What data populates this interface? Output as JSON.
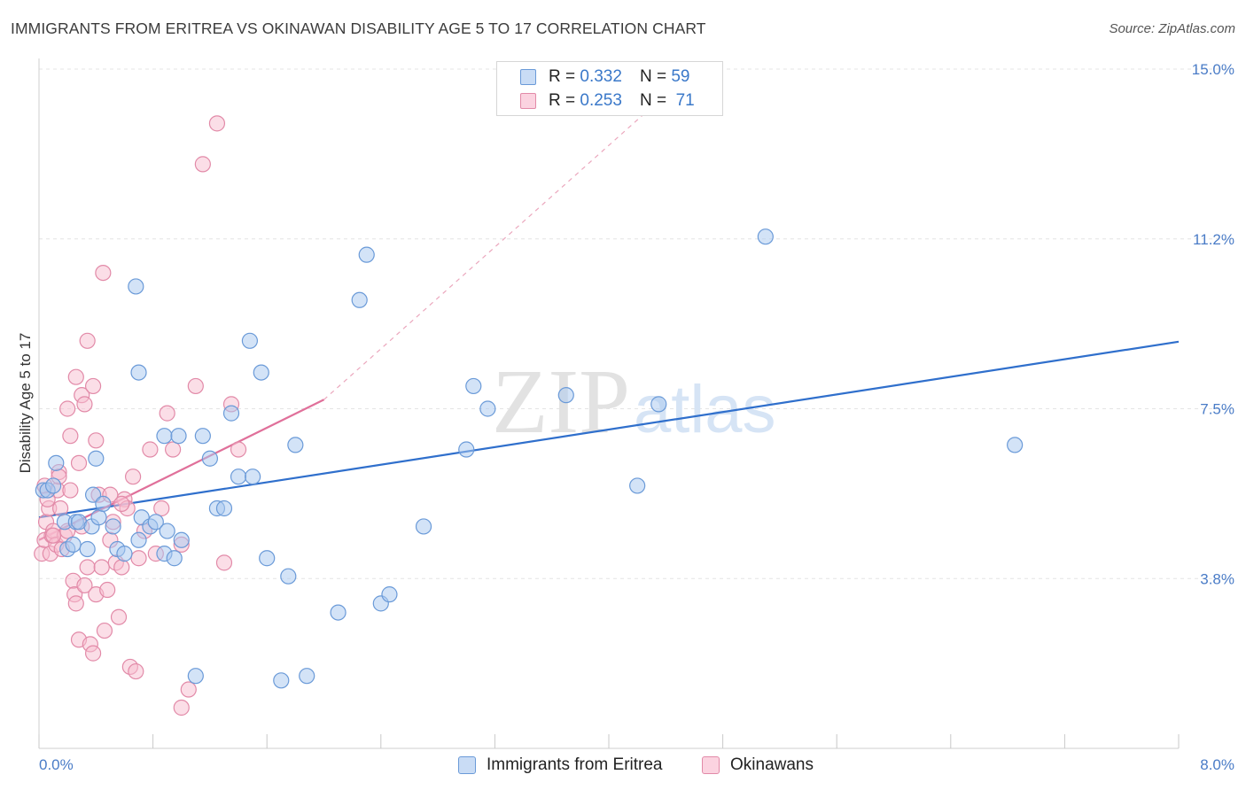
{
  "title": "IMMIGRANTS FROM ERITREA VS OKINAWAN DISABILITY AGE 5 TO 17 CORRELATION CHART",
  "source": "Source: ZipAtlas.com",
  "watermark": {
    "zip": "ZIP",
    "atlas": "atlas"
  },
  "legend": {
    "r_label": "R =",
    "n_label": "N =",
    "rows": [
      {
        "r": "0.332",
        "n": "59",
        "color": "#a8c8f0",
        "stroke": "#6a9ad8"
      },
      {
        "r": "0.253",
        "n": "71",
        "color": "#f7bdd0",
        "stroke": "#e28aa8"
      }
    ]
  },
  "bottom_legend": [
    "Immigrants from Eritrea",
    "Okinawans"
  ],
  "chart_data": {
    "type": "scatter",
    "xlabel": "",
    "ylabel": "Disability Age 5 to 17",
    "xlim": [
      0,
      8
    ],
    "ylim": [
      0,
      15
    ],
    "x_tick_labels": [
      "0.0%",
      "8.0%"
    ],
    "y_ticks": [
      3.75,
      7.5,
      11.25,
      15
    ],
    "y_tick_labels": [
      "3.8%",
      "7.5%",
      "11.2%",
      "15.0%"
    ],
    "grid": true,
    "legend_position": "top-center",
    "colors": {
      "blue_fill": "#a8c8f0",
      "blue_stroke": "#6a9ad8",
      "blue_line": "#2f6fcc",
      "pink_fill": "#f7bdd0",
      "pink_stroke": "#e28aa8",
      "pink_line": "#e0709a"
    },
    "series": [
      {
        "name": "Immigrants from Eritrea",
        "trend": {
          "x": [
            0.0,
            8.0
          ],
          "y": [
            5.1,
            8.98
          ]
        },
        "points": [
          [
            0.03,
            5.7
          ],
          [
            0.06,
            5.7
          ],
          [
            0.1,
            5.8
          ],
          [
            0.12,
            6.3
          ],
          [
            0.18,
            5.0
          ],
          [
            0.2,
            4.4
          ],
          [
            0.24,
            4.5
          ],
          [
            0.26,
            5.0
          ],
          [
            0.28,
            5.0
          ],
          [
            0.34,
            4.4
          ],
          [
            0.37,
            4.9
          ],
          [
            0.38,
            5.6
          ],
          [
            0.4,
            6.4
          ],
          [
            0.42,
            5.1
          ],
          [
            0.45,
            5.4
          ],
          [
            0.52,
            4.9
          ],
          [
            0.55,
            4.4
          ],
          [
            0.6,
            4.3
          ],
          [
            0.7,
            4.6
          ],
          [
            0.72,
            5.1
          ],
          [
            0.78,
            4.9
          ],
          [
            0.82,
            5.0
          ],
          [
            0.88,
            4.3
          ],
          [
            0.9,
            4.8
          ],
          [
            0.95,
            4.2
          ],
          [
            1.0,
            4.6
          ],
          [
            0.88,
            6.9
          ],
          [
            0.98,
            6.9
          ],
          [
            1.15,
            6.9
          ],
          [
            1.2,
            6.4
          ],
          [
            1.25,
            5.3
          ],
          [
            1.3,
            5.3
          ],
          [
            1.4,
            6.0
          ],
          [
            1.5,
            6.0
          ],
          [
            1.56,
            8.3
          ],
          [
            1.48,
            9.0
          ],
          [
            0.7,
            8.3
          ],
          [
            0.68,
            10.2
          ],
          [
            1.35,
            7.4
          ],
          [
            1.6,
            4.2
          ],
          [
            1.75,
            3.8
          ],
          [
            1.8,
            6.7
          ],
          [
            2.1,
            3.0
          ],
          [
            2.25,
            9.9
          ],
          [
            2.4,
            3.2
          ],
          [
            2.46,
            3.4
          ],
          [
            2.7,
            4.9
          ],
          [
            3.0,
            6.6
          ],
          [
            3.05,
            8.0
          ],
          [
            3.15,
            7.5
          ],
          [
            3.7,
            7.8
          ],
          [
            4.2,
            5.8
          ],
          [
            4.35,
            7.6
          ],
          [
            5.1,
            11.3
          ],
          [
            6.85,
            6.7
          ],
          [
            2.3,
            10.9
          ],
          [
            1.1,
            1.6
          ],
          [
            1.7,
            1.5
          ],
          [
            1.88,
            1.6
          ]
        ]
      },
      {
        "name": "Okinawans",
        "trend": {
          "x": [
            0.0,
            2.0
          ],
          "y": [
            4.6,
            7.7
          ]
        },
        "trend_dashed": {
          "x": [
            2.0,
            4.6
          ],
          "y": [
            7.7,
            15.0
          ]
        },
        "points": [
          [
            0.02,
            4.3
          ],
          [
            0.04,
            4.6
          ],
          [
            0.05,
            5.0
          ],
          [
            0.07,
            5.3
          ],
          [
            0.08,
            4.3
          ],
          [
            0.09,
            4.7
          ],
          [
            0.1,
            4.8
          ],
          [
            0.12,
            4.5
          ],
          [
            0.13,
            5.7
          ],
          [
            0.14,
            6.1
          ],
          [
            0.15,
            5.3
          ],
          [
            0.16,
            4.4
          ],
          [
            0.18,
            4.7
          ],
          [
            0.2,
            4.8
          ],
          [
            0.22,
            5.7
          ],
          [
            0.24,
            3.7
          ],
          [
            0.25,
            3.4
          ],
          [
            0.26,
            3.2
          ],
          [
            0.28,
            2.4
          ],
          [
            0.3,
            4.9
          ],
          [
            0.32,
            3.6
          ],
          [
            0.34,
            4.0
          ],
          [
            0.36,
            2.3
          ],
          [
            0.38,
            2.1
          ],
          [
            0.4,
            3.4
          ],
          [
            0.42,
            5.6
          ],
          [
            0.44,
            4.0
          ],
          [
            0.46,
            2.6
          ],
          [
            0.48,
            3.5
          ],
          [
            0.5,
            4.6
          ],
          [
            0.52,
            5.0
          ],
          [
            0.54,
            4.1
          ],
          [
            0.56,
            2.9
          ],
          [
            0.58,
            4.0
          ],
          [
            0.6,
            5.5
          ],
          [
            0.62,
            5.3
          ],
          [
            0.64,
            1.8
          ],
          [
            0.66,
            6.0
          ],
          [
            0.68,
            1.7
          ],
          [
            0.7,
            4.2
          ],
          [
            0.74,
            4.8
          ],
          [
            0.78,
            6.6
          ],
          [
            0.82,
            4.3
          ],
          [
            0.86,
            5.3
          ],
          [
            0.9,
            7.4
          ],
          [
            0.94,
            6.6
          ],
          [
            1.0,
            4.5
          ],
          [
            1.05,
            1.3
          ],
          [
            1.1,
            8.0
          ],
          [
            1.15,
            12.9
          ],
          [
            1.25,
            13.8
          ],
          [
            1.35,
            7.6
          ],
          [
            1.4,
            6.6
          ],
          [
            0.2,
            7.5
          ],
          [
            0.22,
            6.9
          ],
          [
            0.26,
            8.2
          ],
          [
            0.3,
            7.8
          ],
          [
            0.32,
            7.6
          ],
          [
            0.34,
            9.0
          ],
          [
            0.38,
            8.0
          ],
          [
            0.4,
            6.8
          ],
          [
            0.45,
            10.5
          ],
          [
            0.28,
            6.3
          ],
          [
            0.14,
            6.0
          ],
          [
            0.1,
            4.7
          ],
          [
            0.04,
            5.8
          ],
          [
            0.06,
            5.5
          ],
          [
            1.0,
            0.9
          ],
          [
            1.3,
            4.1
          ],
          [
            0.5,
            5.6
          ],
          [
            0.58,
            5.4
          ]
        ]
      }
    ]
  }
}
